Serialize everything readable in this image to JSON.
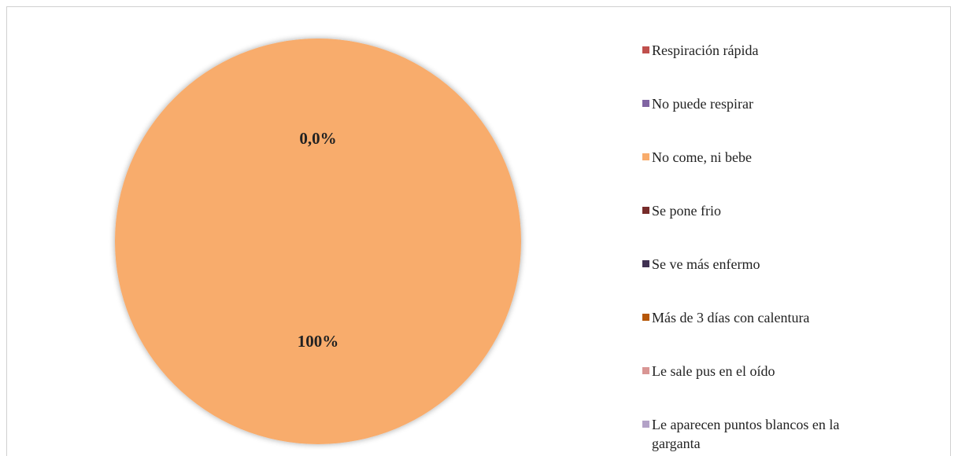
{
  "chart_data": {
    "type": "pie",
    "categories": [
      "Respiración  rápida",
      "No puede respirar",
      "No come, ni bebe",
      "Se pone frio",
      "Se ve más enfermo",
      "Más de 3 días con calentura",
      "Le sale pus en el oído",
      "Le aparecen puntos blancos en la garganta"
    ],
    "values": [
      0,
      0,
      100,
      0,
      0,
      0,
      0,
      0
    ],
    "value_labels": [
      "0,0%",
      null,
      "100%",
      null,
      null,
      null,
      null,
      null
    ],
    "colors": [
      "#c0504d",
      "#8064a2",
      "#f8ac6c",
      "#772c2a",
      "#403152",
      "#b65708",
      "#d99694",
      "#b3a2c7"
    ],
    "legend": "right"
  }
}
